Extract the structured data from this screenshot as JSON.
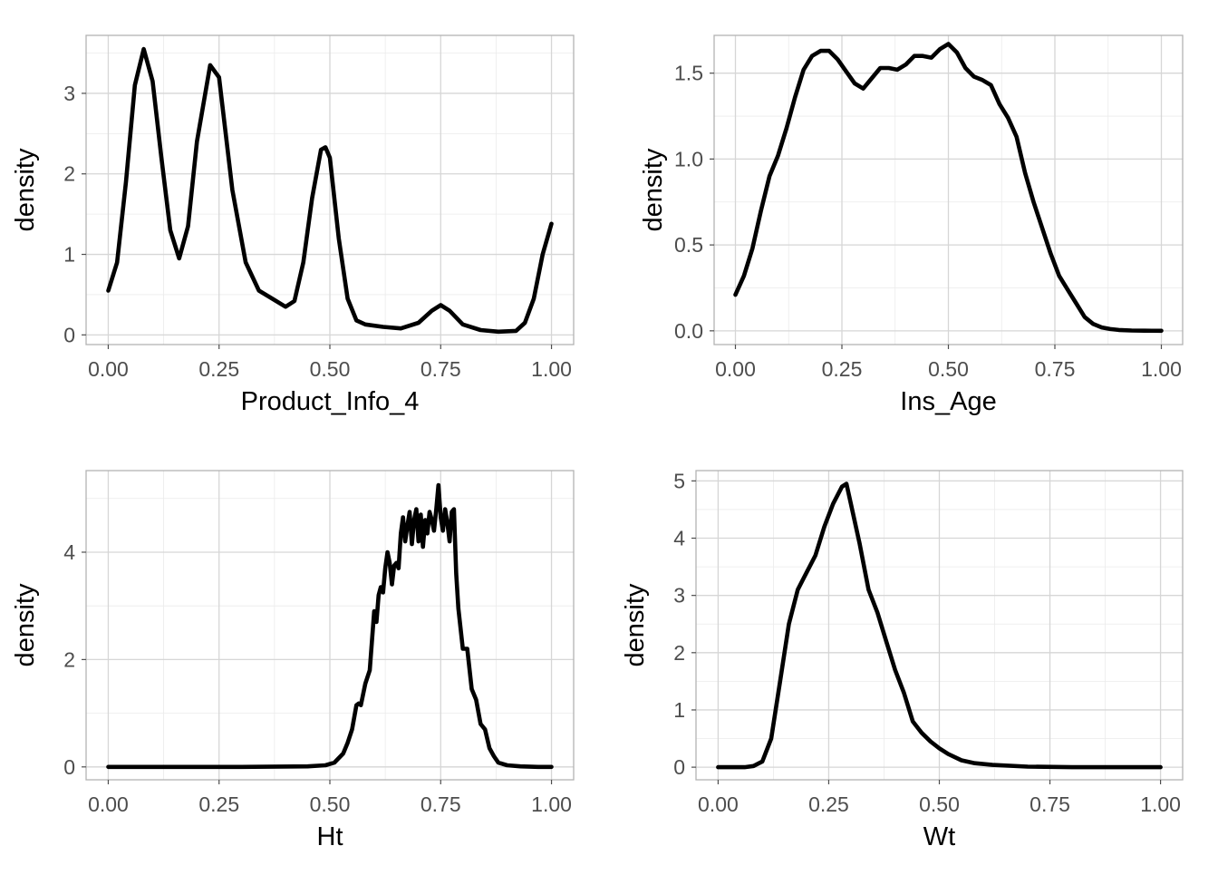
{
  "chart_data": [
    {
      "type": "line",
      "xlabel": "Product_Info_4",
      "ylabel": "density",
      "xlim": [
        -0.05,
        1.05
      ],
      "ylim": [
        -0.12,
        3.72
      ],
      "x_ticks": [
        0,
        0.25,
        0.5,
        0.75,
        1
      ],
      "x_tick_labels": [
        "0.00",
        "0.25",
        "0.50",
        "0.75",
        "1.00"
      ],
      "y_ticks": [
        0,
        1,
        2,
        3
      ],
      "y_tick_labels": [
        "0",
        "1",
        "2",
        "3"
      ],
      "grid": true,
      "line_color": "#000000",
      "series": [
        {
          "x": [
            0.0,
            0.02,
            0.04,
            0.06,
            0.08,
            0.1,
            0.12,
            0.14,
            0.16,
            0.18,
            0.2,
            0.23,
            0.25,
            0.28,
            0.31,
            0.34,
            0.37,
            0.4,
            0.42,
            0.44,
            0.46,
            0.48,
            0.49,
            0.5,
            0.52,
            0.54,
            0.56,
            0.58,
            0.62,
            0.66,
            0.7,
            0.73,
            0.75,
            0.77,
            0.8,
            0.84,
            0.88,
            0.92,
            0.94,
            0.96,
            0.98,
            1.0
          ],
          "y": [
            0.55,
            0.9,
            1.9,
            3.1,
            3.55,
            3.15,
            2.2,
            1.3,
            0.95,
            1.35,
            2.4,
            3.35,
            3.2,
            1.8,
            0.9,
            0.55,
            0.45,
            0.35,
            0.42,
            0.9,
            1.7,
            2.3,
            2.33,
            2.2,
            1.2,
            0.45,
            0.18,
            0.13,
            0.1,
            0.08,
            0.15,
            0.3,
            0.37,
            0.3,
            0.13,
            0.06,
            0.04,
            0.05,
            0.15,
            0.45,
            1.0,
            1.38
          ]
        }
      ]
    },
    {
      "type": "line",
      "xlabel": "Ins_Age",
      "ylabel": "density",
      "xlim": [
        -0.05,
        1.05
      ],
      "ylim": [
        -0.08,
        1.72
      ],
      "x_ticks": [
        0,
        0.25,
        0.5,
        0.75,
        1
      ],
      "x_tick_labels": [
        "0.00",
        "0.25",
        "0.50",
        "0.75",
        "1.00"
      ],
      "y_ticks": [
        0,
        0.5,
        1,
        1.5
      ],
      "y_tick_labels": [
        "0.0",
        "0.5",
        "1.0",
        "1.5"
      ],
      "grid": true,
      "line_color": "#000000",
      "series": [
        {
          "x": [
            0.0,
            0.02,
            0.04,
            0.06,
            0.08,
            0.1,
            0.12,
            0.14,
            0.16,
            0.18,
            0.2,
            0.22,
            0.24,
            0.26,
            0.28,
            0.3,
            0.32,
            0.34,
            0.36,
            0.38,
            0.4,
            0.42,
            0.44,
            0.46,
            0.48,
            0.5,
            0.52,
            0.54,
            0.56,
            0.58,
            0.6,
            0.62,
            0.64,
            0.66,
            0.68,
            0.7,
            0.72,
            0.74,
            0.76,
            0.78,
            0.8,
            0.82,
            0.84,
            0.86,
            0.88,
            0.9,
            0.93,
            0.96,
            1.0
          ],
          "y": [
            0.21,
            0.32,
            0.48,
            0.7,
            0.9,
            1.02,
            1.18,
            1.36,
            1.52,
            1.6,
            1.63,
            1.63,
            1.58,
            1.51,
            1.44,
            1.41,
            1.47,
            1.53,
            1.53,
            1.52,
            1.55,
            1.6,
            1.6,
            1.59,
            1.64,
            1.67,
            1.62,
            1.53,
            1.48,
            1.46,
            1.43,
            1.32,
            1.24,
            1.13,
            0.92,
            0.75,
            0.6,
            0.45,
            0.32,
            0.24,
            0.16,
            0.08,
            0.04,
            0.02,
            0.01,
            0.005,
            0.002,
            0.001,
            0.0
          ]
        }
      ]
    },
    {
      "type": "line",
      "xlabel": "Ht",
      "ylabel": "density",
      "xlim": [
        -0.05,
        1.05
      ],
      "ylim": [
        -0.24,
        5.52
      ],
      "x_ticks": [
        0,
        0.25,
        0.5,
        0.75,
        1
      ],
      "x_tick_labels": [
        "0.00",
        "0.25",
        "0.50",
        "0.75",
        "1.00"
      ],
      "y_ticks": [
        0,
        2,
        4
      ],
      "y_tick_labels": [
        "0",
        "2",
        "4"
      ],
      "grid": true,
      "line_color": "#000000",
      "series": [
        {
          "x": [
            0.0,
            0.3,
            0.45,
            0.49,
            0.51,
            0.53,
            0.54,
            0.55,
            0.56,
            0.565,
            0.57,
            0.58,
            0.59,
            0.6,
            0.605,
            0.61,
            0.615,
            0.62,
            0.625,
            0.63,
            0.635,
            0.64,
            0.645,
            0.65,
            0.655,
            0.66,
            0.665,
            0.67,
            0.675,
            0.68,
            0.685,
            0.69,
            0.695,
            0.7,
            0.705,
            0.71,
            0.715,
            0.72,
            0.725,
            0.73,
            0.735,
            0.74,
            0.745,
            0.75,
            0.755,
            0.76,
            0.765,
            0.77,
            0.775,
            0.78,
            0.785,
            0.79,
            0.8,
            0.81,
            0.82,
            0.83,
            0.84,
            0.85,
            0.86,
            0.87,
            0.88,
            0.9,
            0.93,
            0.97,
            1.0
          ],
          "y": [
            0.0,
            0.0,
            0.01,
            0.03,
            0.08,
            0.25,
            0.45,
            0.7,
            1.15,
            1.18,
            1.15,
            1.55,
            1.8,
            2.9,
            2.7,
            3.2,
            3.35,
            3.25,
            3.7,
            4.0,
            3.8,
            3.4,
            3.75,
            3.8,
            3.7,
            4.35,
            4.65,
            4.2,
            4.5,
            4.75,
            4.15,
            4.6,
            4.8,
            4.2,
            4.7,
            4.1,
            4.6,
            4.35,
            4.75,
            4.6,
            4.4,
            4.8,
            5.25,
            4.65,
            4.4,
            4.8,
            4.55,
            4.2,
            4.75,
            4.8,
            3.6,
            2.95,
            2.2,
            2.2,
            1.45,
            1.25,
            0.8,
            0.7,
            0.35,
            0.2,
            0.08,
            0.03,
            0.01,
            0.0,
            0.0
          ]
        }
      ]
    },
    {
      "type": "line",
      "xlabel": "Wt",
      "ylabel": "density",
      "xlim": [
        -0.05,
        1.05
      ],
      "ylim": [
        -0.22,
        5.18
      ],
      "x_ticks": [
        0,
        0.25,
        0.5,
        0.75,
        1
      ],
      "x_tick_labels": [
        "0.00",
        "0.25",
        "0.50",
        "0.75",
        "1.00"
      ],
      "y_ticks": [
        0,
        1,
        2,
        3,
        4,
        5
      ],
      "y_tick_labels": [
        "0",
        "1",
        "2",
        "3",
        "4",
        "5"
      ],
      "grid": true,
      "line_color": "#000000",
      "series": [
        {
          "x": [
            0.0,
            0.06,
            0.08,
            0.1,
            0.12,
            0.14,
            0.16,
            0.18,
            0.2,
            0.22,
            0.24,
            0.26,
            0.28,
            0.29,
            0.3,
            0.32,
            0.34,
            0.36,
            0.38,
            0.4,
            0.42,
            0.44,
            0.46,
            0.48,
            0.5,
            0.52,
            0.55,
            0.58,
            0.62,
            0.7,
            0.8,
            0.9,
            1.0
          ],
          "y": [
            0.0,
            0.0,
            0.02,
            0.1,
            0.5,
            1.5,
            2.5,
            3.1,
            3.4,
            3.7,
            4.2,
            4.6,
            4.9,
            4.95,
            4.6,
            3.9,
            3.1,
            2.7,
            2.2,
            1.7,
            1.3,
            0.8,
            0.6,
            0.45,
            0.33,
            0.23,
            0.12,
            0.07,
            0.04,
            0.01,
            0.0,
            0.0,
            0.0
          ]
        }
      ]
    }
  ]
}
